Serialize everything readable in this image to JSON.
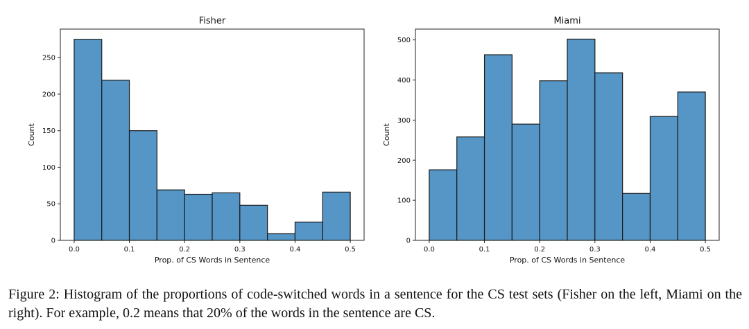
{
  "chart_data": [
    {
      "type": "bar",
      "title": "Fisher",
      "xlabel": "Prop. of CS Words in Sentence",
      "ylabel": "Count",
      "bin_edges": [
        0.0,
        0.05,
        0.1,
        0.15,
        0.2,
        0.25,
        0.3,
        0.35,
        0.4,
        0.45,
        0.5
      ],
      "values": [
        275,
        219,
        150,
        69,
        63,
        65,
        48,
        9,
        25,
        66
      ],
      "xticks": [
        "0.0",
        "0.1",
        "0.2",
        "0.3",
        "0.4",
        "0.5"
      ],
      "yticks": [
        "0",
        "50",
        "100",
        "150",
        "200",
        "250"
      ],
      "xlim": [
        -0.025,
        0.525
      ],
      "ylim": [
        0,
        289
      ],
      "grid": false,
      "bar_color": "#5596c6"
    },
    {
      "type": "bar",
      "title": "Miami",
      "xlabel": "Prop. of CS Words in Sentence",
      "ylabel": "Count",
      "bin_edges": [
        0.0,
        0.05,
        0.1,
        0.15,
        0.2,
        0.25,
        0.3,
        0.35,
        0.4,
        0.45,
        0.5
      ],
      "values": [
        176,
        258,
        463,
        290,
        398,
        502,
        418,
        117,
        309,
        370
      ],
      "xticks": [
        "0.0",
        "0.1",
        "0.2",
        "0.3",
        "0.4",
        "0.5"
      ],
      "yticks": [
        "0",
        "100",
        "200",
        "300",
        "400",
        "500"
      ],
      "xlim": [
        -0.025,
        0.525
      ],
      "ylim": [
        0,
        527
      ],
      "grid": false,
      "bar_color": "#5596c6"
    }
  ],
  "caption": "Figure 2: Histogram of the proportions of code-switched words in a sentence for the CS test sets (Fisher on the left, Miami on the right). For example, 0.2 means that 20% of the words in the sentence are CS."
}
